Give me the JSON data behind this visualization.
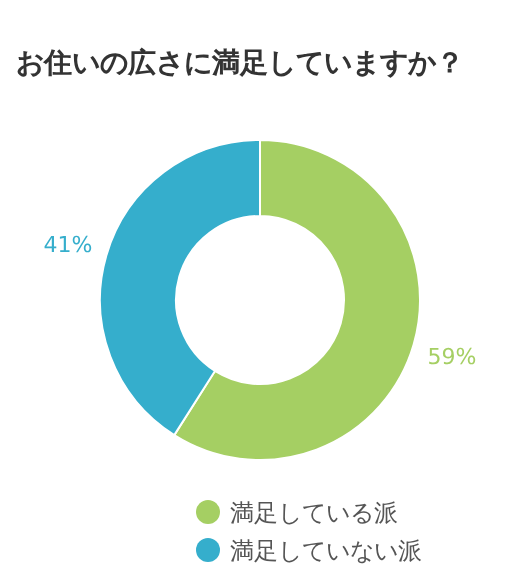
{
  "chart_data": {
    "type": "donut",
    "title": "お住いの広さに満足していますか？",
    "categories": [
      "満足している派",
      "満足していない派"
    ],
    "values": [
      59,
      41
    ],
    "colors": [
      "#a5cf63",
      "#35aecc"
    ],
    "value_labels": [
      "59%",
      "41%"
    ],
    "legend": "bottom"
  }
}
